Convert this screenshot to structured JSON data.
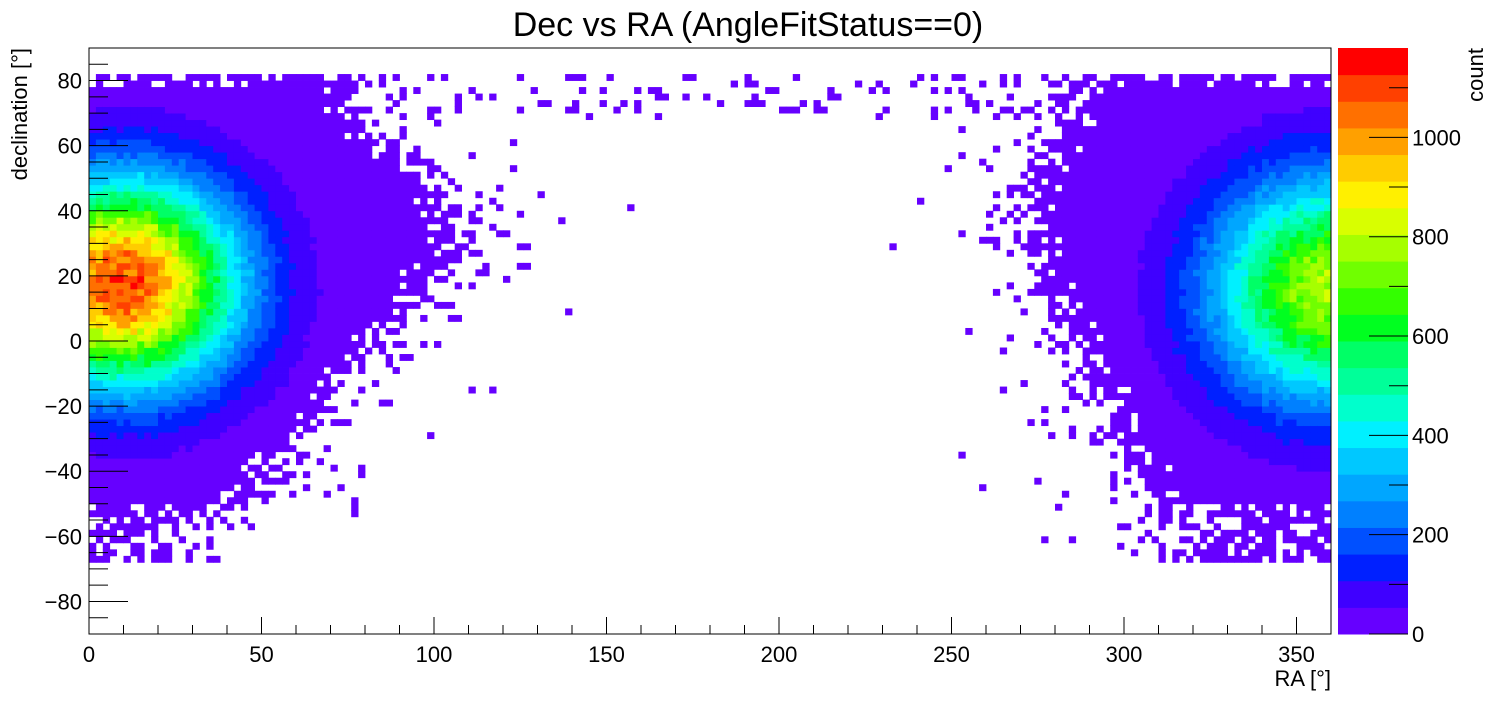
{
  "chart_data": {
    "type": "heatmap",
    "title": "Dec vs RA (AngleFitStatus==0)",
    "xlabel": "RA [°]",
    "ylabel": "declination [°]",
    "zlabel": "count",
    "xlim": [
      0,
      360
    ],
    "ylim": [
      -90,
      90
    ],
    "zlim": [
      0,
      1180
    ],
    "xticks": [
      0,
      50,
      100,
      150,
      200,
      250,
      300,
      350
    ],
    "yticks": [
      -80,
      -60,
      -40,
      -20,
      0,
      20,
      40,
      60,
      80
    ],
    "zticks": [
      0,
      200,
      400,
      600,
      800,
      1000
    ],
    "grid": false,
    "legend": "color palette at right",
    "bins": {
      "ra_width": 2,
      "dec_width": 2
    },
    "peaks": [
      {
        "ra": 10,
        "dec": 18,
        "count": 1100
      },
      {
        "ra": 360,
        "dec": 16,
        "count": 800
      }
    ],
    "palette": [
      "#6600ff",
      "#3f00ff",
      "#0020ff",
      "#0050ff",
      "#0080ff",
      "#00a6ff",
      "#00c8ff",
      "#00f0ff",
      "#00ffcc",
      "#00ff99",
      "#00ff66",
      "#00ff20",
      "#33ff00",
      "#70ff00",
      "#a6ff00",
      "#d8ff00",
      "#fff000",
      "#ffcc00",
      "#ffa000",
      "#ff7000",
      "#ff4000",
      "#ff0000"
    ]
  }
}
